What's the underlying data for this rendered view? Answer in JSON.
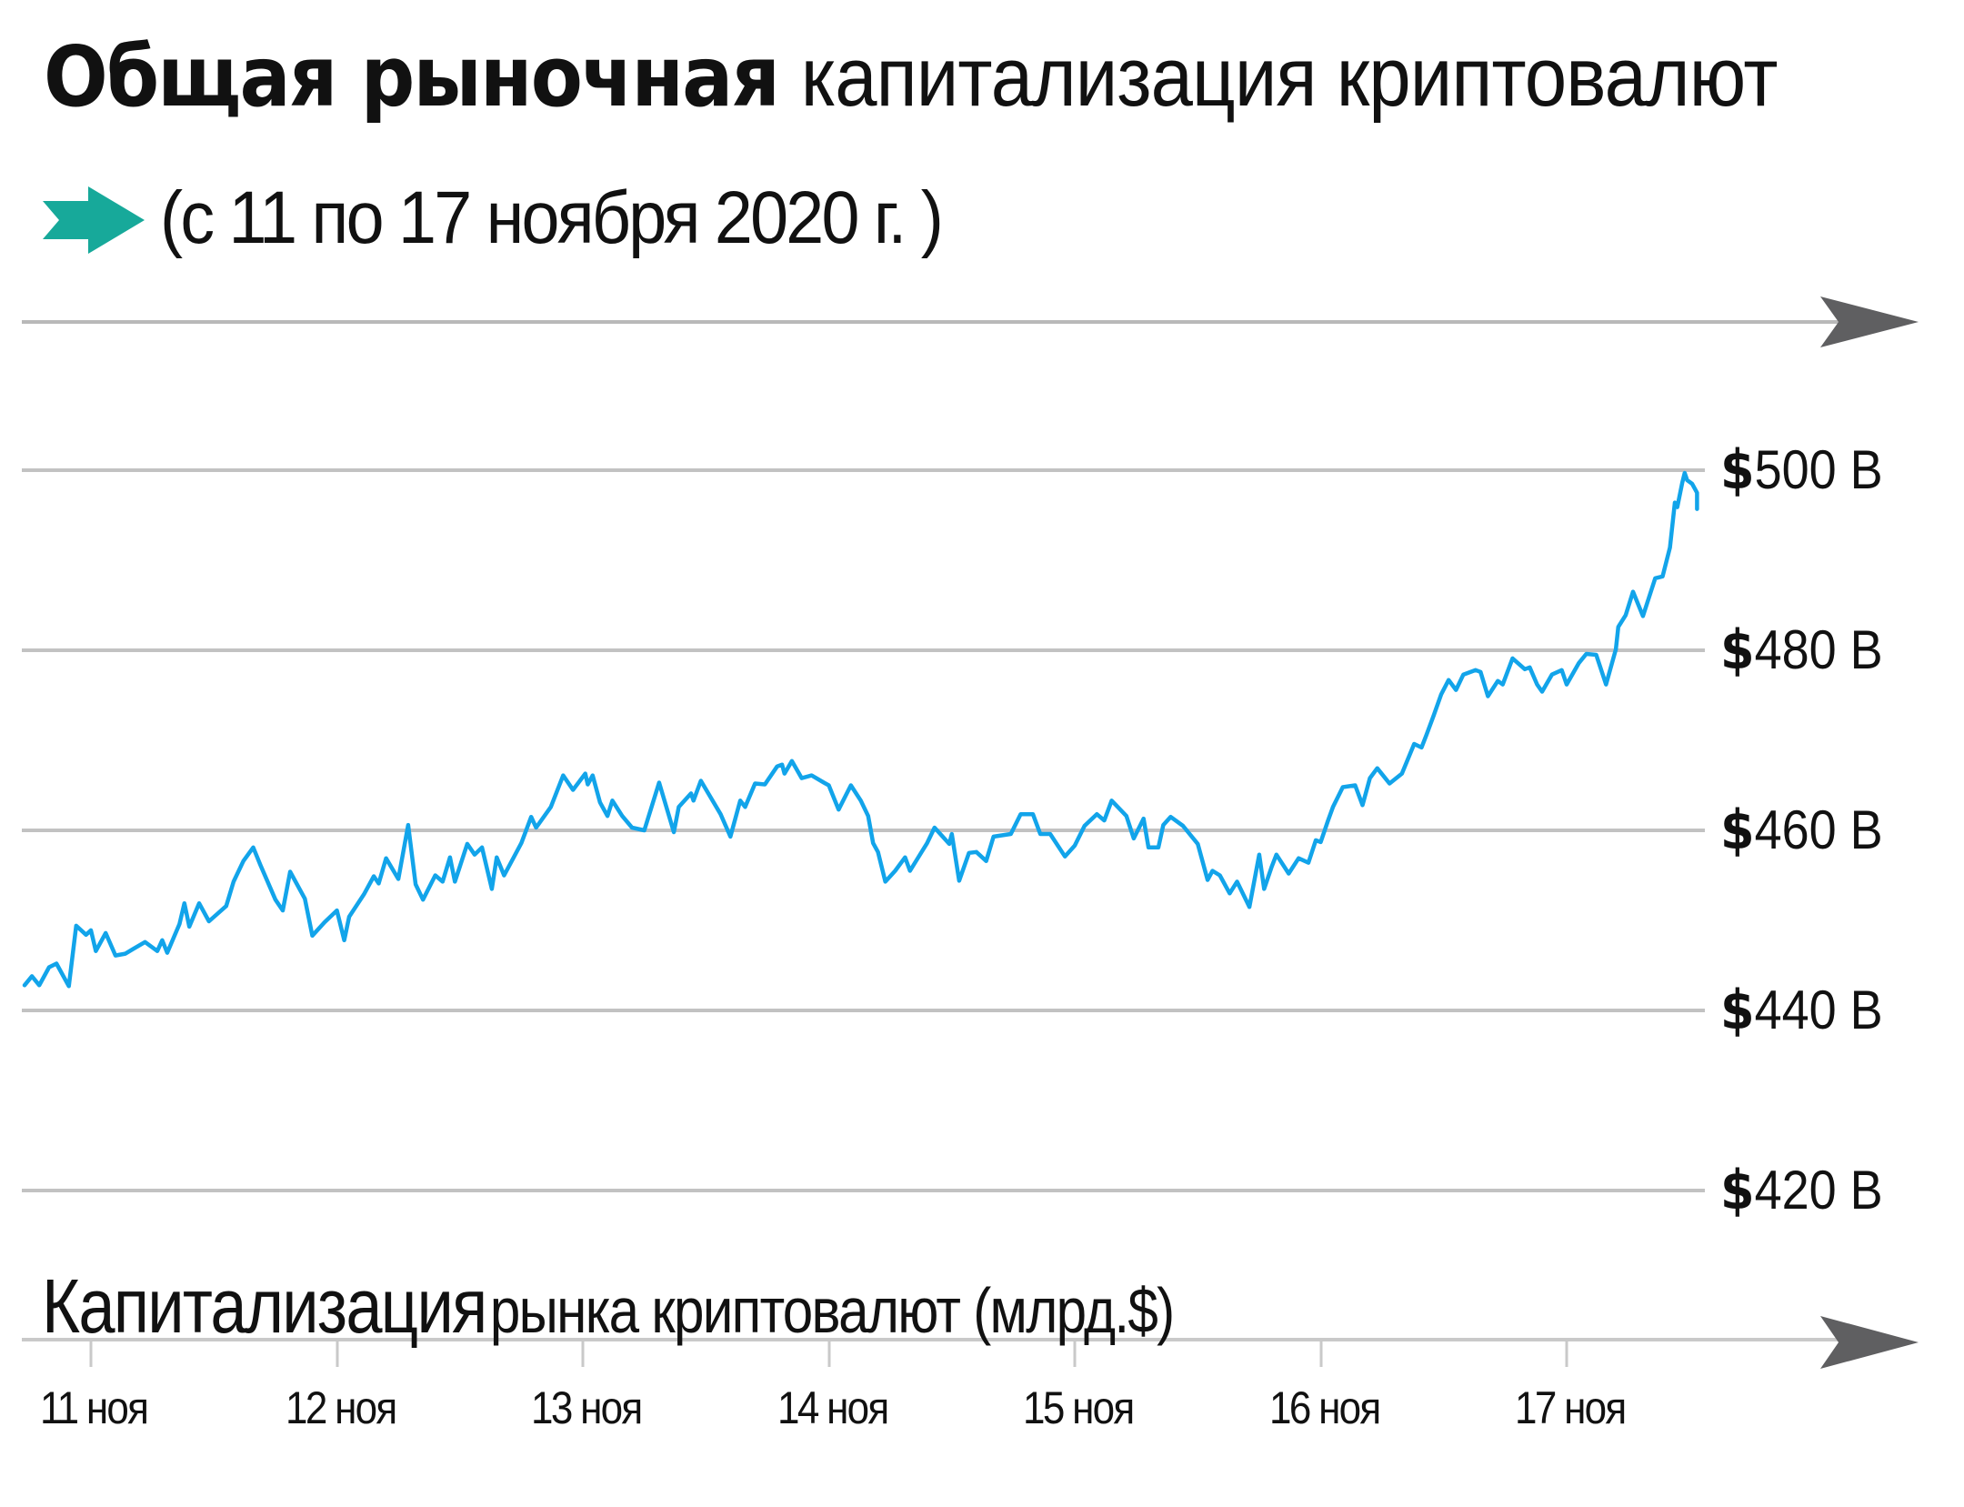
{
  "header": {
    "title_bold": "Общая рыночная",
    "title_regular": "капитализация криптовалют",
    "subtitle": "(с 11 по 17 ноября 2020 г. )",
    "subtitle_icon": "teal-arrow-icon"
  },
  "axis_caption": {
    "bold_part": "Капитализация",
    "regular_part": "рынка криптовалют (млрд.$)"
  },
  "y_axis": {
    "labels": [
      {
        "currency": "$",
        "value": "500 B"
      },
      {
        "currency": "$",
        "value": "480 B"
      },
      {
        "currency": "$",
        "value": "460 B"
      },
      {
        "currency": "$",
        "value": "440 B"
      },
      {
        "currency": "$",
        "value": "420 B"
      }
    ]
  },
  "x_axis": {
    "labels": [
      {
        "day": "11",
        "month": "ноя"
      },
      {
        "day": "12",
        "month": "ноя"
      },
      {
        "day": "13",
        "month": "ноя"
      },
      {
        "day": "14",
        "month": "ноя"
      },
      {
        "day": "15",
        "month": "ноя"
      },
      {
        "day": "16",
        "month": "ноя"
      },
      {
        "day": "17",
        "month": "ноя"
      }
    ]
  },
  "colors": {
    "line": "#12a4ea",
    "accent_arrow": "#17a99a",
    "grid": "#b9b9b9",
    "axis_arrow": "#5f5f61",
    "text": "#111111"
  },
  "chart_data": {
    "type": "line",
    "title": "Общая рыночная капитализация криптовалют",
    "subtitle": "(с 11 по 17 ноября 2020 г. )",
    "xlabel": "",
    "ylabel": "Капитализация рынка криптовалют (млрд.$)",
    "x_tick_labels": [
      "11 ноя",
      "12 ноя",
      "13 ноя",
      "14 ноя",
      "15 ноя",
      "16 ноя",
      "17 ноя"
    ],
    "y_tick_labels": [
      "$500 B",
      "$480 B",
      "$460 B",
      "$440 B",
      "$420 B"
    ],
    "ylim": [
      420,
      500
    ],
    "grid": true,
    "legend": null,
    "series": [
      {
        "name": "Капитализация рынка криптовалют (млрд.$)",
        "x_unit": "days since 11 ноя 00:00",
        "points": [
          [
            -0.27,
            442.8
          ],
          [
            -0.24,
            443.8
          ],
          [
            -0.21,
            442.8
          ],
          [
            -0.17,
            444.8
          ],
          [
            -0.14,
            445.2
          ],
          [
            -0.09,
            442.7
          ],
          [
            -0.06,
            449.4
          ],
          [
            -0.02,
            448.4
          ],
          [
            0.0,
            448.9
          ],
          [
            0.02,
            446.6
          ],
          [
            0.06,
            448.6
          ],
          [
            0.1,
            446.1
          ],
          [
            0.14,
            446.3
          ],
          [
            0.17,
            446.8
          ],
          [
            0.22,
            447.6
          ],
          [
            0.27,
            446.6
          ],
          [
            0.29,
            447.8
          ],
          [
            0.31,
            446.4
          ],
          [
            0.36,
            449.6
          ],
          [
            0.38,
            451.9
          ],
          [
            0.4,
            449.3
          ],
          [
            0.44,
            451.9
          ],
          [
            0.48,
            449.9
          ],
          [
            0.55,
            451.6
          ],
          [
            0.58,
            454.3
          ],
          [
            0.62,
            456.6
          ],
          [
            0.66,
            458.1
          ],
          [
            0.69,
            456.1
          ],
          [
            0.75,
            452.3
          ],
          [
            0.78,
            451.1
          ],
          [
            0.81,
            455.4
          ],
          [
            0.87,
            452.4
          ],
          [
            0.9,
            448.3
          ],
          [
            0.95,
            449.8
          ],
          [
            1.0,
            451.1
          ],
          [
            1.03,
            447.8
          ],
          [
            1.05,
            450.4
          ],
          [
            1.11,
            452.9
          ],
          [
            1.15,
            454.9
          ],
          [
            1.17,
            454.1
          ],
          [
            1.2,
            456.9
          ],
          [
            1.25,
            454.6
          ],
          [
            1.29,
            460.6
          ],
          [
            1.32,
            454.0
          ],
          [
            1.35,
            452.3
          ],
          [
            1.4,
            455.0
          ],
          [
            1.43,
            454.3
          ],
          [
            1.46,
            457.0
          ],
          [
            1.48,
            454.3
          ],
          [
            1.53,
            458.5
          ],
          [
            1.56,
            457.3
          ],
          [
            1.59,
            458.1
          ],
          [
            1.63,
            453.5
          ],
          [
            1.65,
            457.0
          ],
          [
            1.68,
            455.0
          ],
          [
            1.75,
            458.6
          ],
          [
            1.79,
            461.5
          ],
          [
            1.81,
            460.3
          ],
          [
            1.87,
            462.6
          ],
          [
            1.92,
            466.1
          ],
          [
            1.96,
            464.5
          ],
          [
            2.01,
            466.3
          ],
          [
            2.02,
            465.1
          ],
          [
            2.04,
            466.1
          ],
          [
            2.07,
            463.1
          ],
          [
            2.1,
            461.6
          ],
          [
            2.12,
            463.3
          ],
          [
            2.16,
            461.6
          ],
          [
            2.2,
            460.3
          ],
          [
            2.25,
            460.0
          ],
          [
            2.31,
            465.3
          ],
          [
            2.37,
            459.8
          ],
          [
            2.39,
            462.6
          ],
          [
            2.44,
            464.1
          ],
          [
            2.45,
            463.3
          ],
          [
            2.48,
            465.5
          ],
          [
            2.56,
            461.8
          ],
          [
            2.6,
            459.3
          ],
          [
            2.64,
            463.3
          ],
          [
            2.66,
            462.6
          ],
          [
            2.7,
            465.2
          ],
          [
            2.74,
            465.1
          ],
          [
            2.79,
            467.1
          ],
          [
            2.81,
            467.3
          ],
          [
            2.82,
            466.3
          ],
          [
            2.85,
            467.7
          ],
          [
            2.89,
            465.8
          ],
          [
            2.93,
            466.1
          ],
          [
            2.98,
            465.3
          ],
          [
            3.0,
            465.0
          ],
          [
            3.04,
            462.3
          ],
          [
            3.09,
            465.0
          ],
          [
            3.13,
            463.3
          ],
          [
            3.16,
            461.6
          ],
          [
            3.18,
            458.6
          ],
          [
            3.2,
            457.6
          ],
          [
            3.23,
            454.3
          ],
          [
            3.27,
            455.5
          ],
          [
            3.31,
            457.0
          ],
          [
            3.33,
            455.5
          ],
          [
            3.4,
            458.6
          ],
          [
            3.43,
            460.3
          ],
          [
            3.49,
            458.5
          ],
          [
            3.5,
            459.6
          ],
          [
            3.53,
            454.4
          ],
          [
            3.57,
            457.5
          ],
          [
            3.6,
            457.6
          ],
          [
            3.64,
            456.6
          ],
          [
            3.67,
            459.3
          ],
          [
            3.74,
            459.6
          ],
          [
            3.78,
            461.8
          ],
          [
            3.83,
            461.8
          ],
          [
            3.86,
            459.6
          ],
          [
            3.9,
            459.6
          ],
          [
            3.96,
            457.1
          ],
          [
            4.0,
            458.3
          ],
          [
            4.04,
            460.5
          ],
          [
            4.09,
            461.8
          ],
          [
            4.12,
            461.1
          ],
          [
            4.15,
            463.3
          ],
          [
            4.21,
            461.6
          ],
          [
            4.24,
            459.1
          ],
          [
            4.28,
            461.3
          ],
          [
            4.3,
            458.1
          ],
          [
            4.34,
            458.1
          ],
          [
            4.36,
            460.6
          ],
          [
            4.39,
            461.5
          ],
          [
            4.44,
            460.5
          ],
          [
            4.5,
            458.5
          ],
          [
            4.54,
            454.5
          ],
          [
            4.56,
            455.5
          ],
          [
            4.59,
            455.0
          ],
          [
            4.63,
            453.0
          ],
          [
            4.66,
            454.3
          ],
          [
            4.71,
            451.5
          ],
          [
            4.75,
            457.3
          ],
          [
            4.77,
            453.5
          ],
          [
            4.8,
            455.9
          ],
          [
            4.82,
            457.3
          ],
          [
            4.87,
            455.2
          ],
          [
            4.91,
            456.9
          ],
          [
            4.95,
            456.4
          ],
          [
            4.98,
            458.9
          ],
          [
            5.0,
            458.7
          ],
          [
            5.03,
            461.1
          ],
          [
            5.05,
            462.6
          ],
          [
            5.09,
            464.8
          ],
          [
            5.14,
            465.0
          ],
          [
            5.17,
            462.8
          ],
          [
            5.2,
            465.8
          ],
          [
            5.23,
            466.9
          ],
          [
            5.28,
            465.2
          ],
          [
            5.33,
            466.3
          ],
          [
            5.38,
            469.6
          ],
          [
            5.41,
            469.2
          ],
          [
            5.43,
            470.6
          ],
          [
            5.46,
            472.8
          ],
          [
            5.49,
            475.1
          ],
          [
            5.52,
            476.7
          ],
          [
            5.55,
            475.6
          ],
          [
            5.58,
            477.3
          ],
          [
            5.63,
            477.8
          ],
          [
            5.65,
            477.6
          ],
          [
            5.68,
            474.9
          ],
          [
            5.72,
            476.6
          ],
          [
            5.74,
            476.2
          ],
          [
            5.78,
            479.1
          ],
          [
            5.83,
            477.9
          ],
          [
            5.85,
            478.1
          ],
          [
            5.88,
            476.2
          ],
          [
            5.9,
            475.4
          ],
          [
            5.94,
            477.3
          ],
          [
            5.98,
            477.8
          ],
          [
            6.0,
            476.2
          ],
          [
            6.05,
            478.6
          ],
          [
            6.08,
            479.6
          ],
          [
            6.12,
            479.5
          ],
          [
            6.16,
            476.2
          ],
          [
            6.2,
            480.1
          ],
          [
            6.21,
            482.6
          ],
          [
            6.24,
            483.9
          ],
          [
            6.27,
            486.5
          ],
          [
            6.31,
            483.8
          ],
          [
            6.36,
            488.0
          ],
          [
            6.39,
            488.2
          ],
          [
            6.42,
            491.4
          ],
          [
            6.44,
            496.4
          ],
          [
            6.45,
            495.9
          ],
          [
            6.47,
            498.6
          ],
          [
            6.48,
            499.7
          ],
          [
            6.49,
            498.9
          ],
          [
            6.51,
            498.5
          ],
          [
            6.53,
            497.5
          ],
          [
            6.53,
            495.7
          ]
        ]
      }
    ]
  }
}
